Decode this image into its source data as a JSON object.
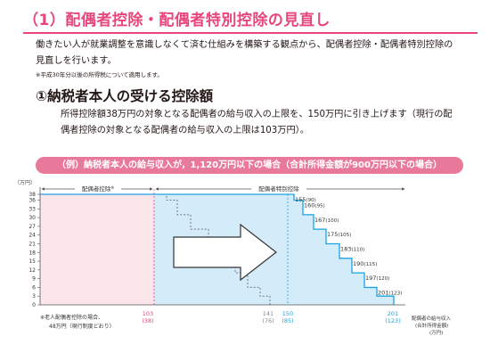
{
  "title": "（1）配偶者控除・配偶者特別控除の見直し",
  "intro": {
    "line1": "働きたい人が就業調整を意識しなくて済む仕組みを構築する観点から、配偶者控除・配偶者特別控除の",
    "line2": "見直しを行います。",
    "note": "※平成30年分以後の所得税について適用します。"
  },
  "section": {
    "heading": "①納税者本人の受ける控除額",
    "line1": "所得控除額38万円の対象となる配偶者の給与収入の上限を、150万円に引き上げます（現行の配",
    "line2": "偶者控除の対象となる配偶者の給与収入の上限は103万円）。"
  },
  "banner": "（例）納税者本人の給与収入が，1,120万円以下の場合（合計所得金額が900万円以下の場合）",
  "colors": {
    "accent": "#e8457a",
    "banner": "#e9799a",
    "pink_fill": "#fde6ea",
    "blue_fill": "#d4ebfa",
    "blue_line": "#1aa3e0"
  },
  "chart_data": {
    "type": "step-area",
    "ylabel": "（万円）",
    "yticks": [
      0,
      3,
      6,
      9,
      12,
      15,
      18,
      21,
      24,
      27,
      30,
      33,
      36,
      38
    ],
    "regions": [
      {
        "name": "配偶者控除",
        "marker": "※"
      },
      {
        "name": "配偶者特別控除"
      }
    ],
    "current_steps": [
      {
        "income": 103,
        "income_income": "38",
        "deduction": 38
      },
      {
        "deduction": 36
      },
      {
        "deduction": 31
      },
      {
        "deduction": 26
      },
      {
        "deduction": 21
      },
      {
        "deduction": 16
      },
      {
        "deduction": 11
      },
      {
        "deduction": 6
      },
      {
        "deduction": 3
      },
      {
        "income": 141,
        "income_income": "76",
        "deduction": 0
      }
    ],
    "new_steps": [
      {
        "income": 150,
        "income_income": "85",
        "deduction": 38
      },
      {
        "label": "155",
        "sub": "(90)",
        "deduction": 36
      },
      {
        "label": "160",
        "sub": "(95)",
        "deduction": 31
      },
      {
        "label": "167",
        "sub": "(100)",
        "deduction": 26
      },
      {
        "label": "175",
        "sub": "(105)",
        "deduction": 21
      },
      {
        "label": "183",
        "sub": "(110)",
        "deduction": 16
      },
      {
        "label": "190",
        "sub": "(115)",
        "deduction": 11
      },
      {
        "label": "197",
        "sub": "(120)",
        "deduction": 6
      },
      {
        "label": "201",
        "sub": "(123)",
        "deduction": 3
      },
      {
        "income": 201,
        "income_income": "123",
        "deduction": 0
      }
    ],
    "xlabels": [
      {
        "main": "103",
        "sub": "(38)",
        "color": "#e8457a"
      },
      {
        "main": "141",
        "sub": "(76)",
        "color": "#8a8a8a"
      },
      {
        "main": "150",
        "sub": "(85)",
        "color": "#1aa3e0"
      },
      {
        "main": "201",
        "sub": "(123)",
        "color": "#1aa3e0"
      }
    ],
    "xaxis_label": [
      "配偶者の給与収入",
      "(合計所得金額)",
      "(万円)"
    ],
    "footnote": [
      "※老人配偶者控除の場合、",
      "48万円（現行制度どおり）"
    ]
  }
}
